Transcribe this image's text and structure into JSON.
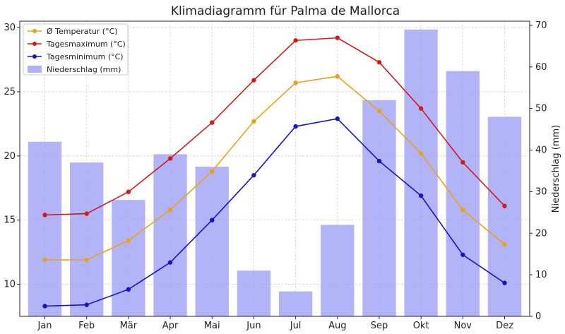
{
  "chart_data": {
    "type": "bar+line",
    "title": "Klimadiagramm für Palma de Mallorca",
    "categories": [
      "Jan",
      "Feb",
      "Mär",
      "Apr",
      "Mai",
      "Jun",
      "Jul",
      "Aug",
      "Sep",
      "Okt",
      "Nov",
      "Dez"
    ],
    "y_left": {
      "label": "",
      "lim": [
        7.5,
        30.5
      ],
      "ticks": [
        10,
        15,
        20,
        25,
        30
      ]
    },
    "y_right": {
      "label": "Niederschlag (mm)",
      "lim": [
        0,
        71
      ],
      "ticks": [
        0,
        10,
        20,
        30,
        40,
        50,
        60,
        70
      ]
    },
    "grid": true,
    "legend_position": "top-left",
    "series": [
      {
        "name": "Ø Temperatur (°C)",
        "kind": "line",
        "axis": "left",
        "color": "#e8a21a",
        "values": [
          11.9,
          11.9,
          13.4,
          15.8,
          18.8,
          22.7,
          25.7,
          26.2,
          23.5,
          20.2,
          15.8,
          13.1
        ]
      },
      {
        "name": "Tagesmaximum (°C)",
        "kind": "line",
        "axis": "left",
        "color": "#d11a1a",
        "values": [
          15.4,
          15.5,
          17.2,
          19.8,
          22.6,
          25.9,
          29.0,
          29.2,
          27.3,
          23.7,
          19.5,
          16.1
        ]
      },
      {
        "name": "Tagesminimum (°C)",
        "kind": "line",
        "axis": "left",
        "color": "#1414c8",
        "values": [
          8.3,
          8.4,
          9.6,
          11.7,
          15.0,
          18.5,
          22.3,
          22.9,
          19.6,
          16.9,
          12.3,
          10.1
        ]
      },
      {
        "name": "Niederschlag (mm)",
        "kind": "bar",
        "axis": "right",
        "color": "#9e9ef5",
        "values": [
          42,
          37,
          28,
          39,
          36,
          11,
          6,
          22,
          52,
          69,
          59,
          48
        ]
      }
    ]
  }
}
